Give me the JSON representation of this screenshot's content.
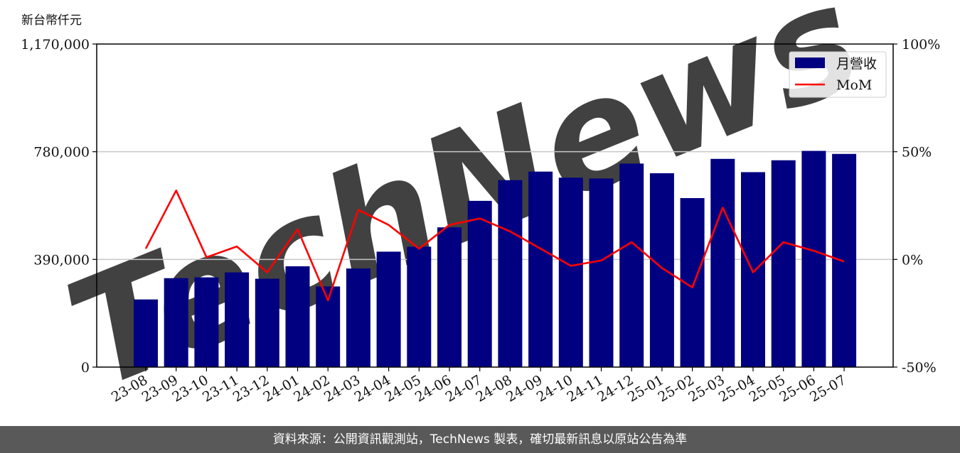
{
  "unit_label": "新台幣仟元",
  "footer": "資料來源：公開資訊觀測站，TechNews 製表，確切最新訊息以原站公告為準",
  "watermark": "TechNews",
  "colors": {
    "bar": "#000080",
    "line": "#ff0000",
    "grid": "#c8c8c8",
    "footer_bg": "#595959",
    "watermark": "#f2d6d6"
  },
  "chart_data": {
    "type": "bar",
    "categories": [
      "23-08",
      "23-09",
      "23-10",
      "23-11",
      "23-12",
      "24-01",
      "24-02",
      "24-03",
      "24-04",
      "24-05",
      "24-06",
      "24-07",
      "24-08",
      "24-09",
      "24-10",
      "24-11",
      "24-12",
      "25-01",
      "25-02",
      "25-03",
      "25-04",
      "25-05",
      "25-06",
      "25-07"
    ],
    "series": [
      {
        "name": "月營收",
        "type": "bar",
        "axis": "left",
        "values": [
          245000,
          322000,
          325000,
          343000,
          320000,
          365000,
          292000,
          357000,
          418000,
          436000,
          506000,
          602000,
          677000,
          708000,
          686000,
          683000,
          737000,
          702000,
          612000,
          754000,
          706000,
          749000,
          783000,
          772000
        ]
      },
      {
        "name": "MoM",
        "type": "line",
        "axis": "right",
        "values": [
          5,
          32,
          1,
          6,
          -6,
          14,
          -19,
          23,
          16,
          5,
          16,
          19,
          13,
          5,
          -3,
          -0.5,
          8,
          -4,
          -13,
          24,
          -6,
          8,
          4,
          -1
        ]
      }
    ],
    "y_left": {
      "ticks": [
        "0",
        "390,000",
        "780,000",
        "1,170,000"
      ],
      "tick_values": [
        0,
        390000,
        780000,
        1170000
      ],
      "ylim": [
        0,
        1170000
      ]
    },
    "y_right": {
      "ticks": [
        "-50%",
        "0%",
        "50%",
        "100%"
      ],
      "tick_values": [
        -50,
        0,
        50,
        100
      ],
      "ylim": [
        -50,
        100
      ]
    },
    "grid": "horizontal",
    "legend": {
      "position": "top-right",
      "entries": [
        "月營收",
        "MoM"
      ]
    }
  }
}
